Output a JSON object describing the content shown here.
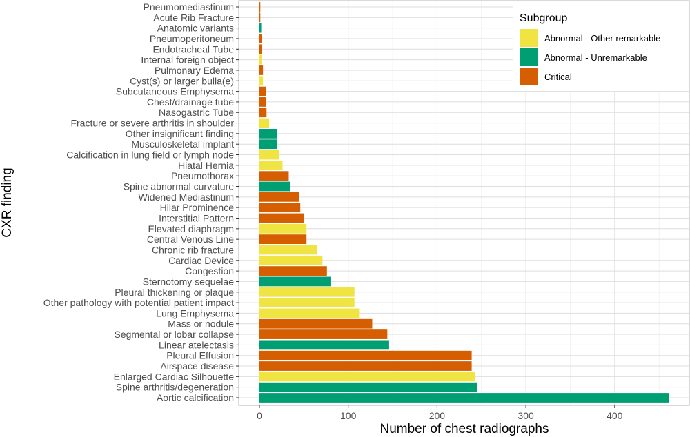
{
  "chart_data": {
    "type": "bar",
    "orientation": "horizontal",
    "title": "",
    "xlabel": "Number of chest radiographs",
    "ylabel": "CXR finding",
    "xlim": [
      -22,
      485
    ],
    "xticks": [
      0,
      100,
      200,
      300,
      400
    ],
    "grid": true,
    "legend": {
      "title": "Subgroup",
      "position": "top-right",
      "entries": [
        {
          "name": "Abnormal - Other remarkable",
          "color": "#f0e442"
        },
        {
          "name": "Abnormal - Unremarkable",
          "color": "#009e73"
        },
        {
          "name": "Critical",
          "color": "#d55e00"
        }
      ]
    },
    "categories": [
      "Pneumomediastinum",
      "Acute Rib Fracture",
      "Anatomic variants",
      "Pneumoperitoneum",
      "Endotracheal Tube",
      "Internal foreign object",
      "Pulmonary Edema",
      "Cyst(s) or larger bulla(e)",
      "Subcutaneous Emphysema",
      "Chest/drainage tube",
      "Nasogastric Tube",
      "Fracture or severe arthritis in shoulder",
      "Other insignificant finding",
      "Musculoskeletal implant",
      "Calcification in lung field or lymph node",
      "Hiatal Hernia",
      "Pneumothorax",
      "Spine abnormal curvature",
      "Widened Mediastinum",
      "Hilar Prominence",
      "Interstitial Pattern",
      "Elevated diaphragm",
      "Central Venous Line",
      "Chronic rib fracture",
      "Cardiac Device",
      "Congestion",
      "Sternotomy sequelae",
      "Pleural thickening or plaque",
      "Other pathology with potential patient impact",
      "Lung Emphysema",
      "Mass or nodule",
      "Segmental or lobar collapse",
      "Linear atelectasis",
      "Pleural Effusion",
      "Airspace disease",
      "Enlarged Cardiac Silhouette",
      "Spine arthritis/degeneration",
      "Aortic calcification"
    ],
    "values": [
      1,
      1,
      2,
      3,
      3,
      3,
      4,
      4,
      7,
      7,
      8,
      11,
      20,
      20,
      22,
      26,
      33,
      35,
      45,
      46,
      50,
      53,
      53,
      65,
      71,
      76,
      80,
      107,
      107,
      113,
      127,
      144,
      146,
      239,
      239,
      243,
      245,
      461
    ],
    "subgroups": [
      "Critical",
      "Critical",
      "Abnormal - Unremarkable",
      "Critical",
      "Critical",
      "Abnormal - Other remarkable",
      "Critical",
      "Abnormal - Other remarkable",
      "Critical",
      "Critical",
      "Critical",
      "Abnormal - Other remarkable",
      "Abnormal - Unremarkable",
      "Abnormal - Unremarkable",
      "Abnormal - Other remarkable",
      "Abnormal - Other remarkable",
      "Critical",
      "Abnormal - Unremarkable",
      "Critical",
      "Critical",
      "Critical",
      "Abnormal - Other remarkable",
      "Critical",
      "Abnormal - Other remarkable",
      "Abnormal - Other remarkable",
      "Critical",
      "Abnormal - Unremarkable",
      "Abnormal - Other remarkable",
      "Abnormal - Other remarkable",
      "Abnormal - Other remarkable",
      "Critical",
      "Critical",
      "Abnormal - Unremarkable",
      "Critical",
      "Critical",
      "Abnormal - Other remarkable",
      "Abnormal - Unremarkable",
      "Abnormal - Unremarkable"
    ]
  }
}
